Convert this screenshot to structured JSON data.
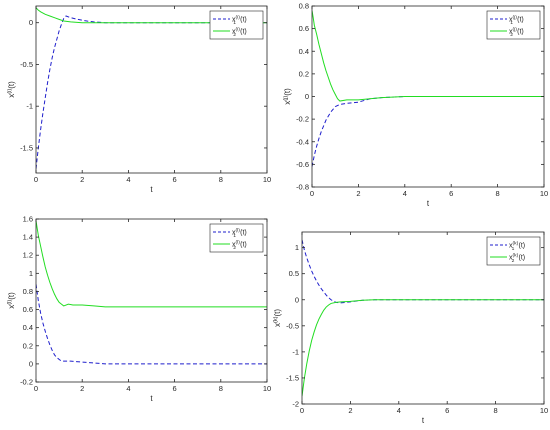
{
  "colors": {
    "x1": "#1f1fcc",
    "x2": "#22dd22",
    "axis": "#262626",
    "background": "#ffffff"
  },
  "chart_data": [
    {
      "type": "line",
      "xlabel": "t",
      "ylabel_base": "x",
      "ylabel_sup": "(i)",
      "ylabel_arg": "(t)",
      "xlim": [
        0,
        10
      ],
      "ylim": [
        -1.8,
        0.2
      ],
      "xticks": [
        "0",
        "2",
        "4",
        "6",
        "8",
        "10"
      ],
      "yticks": [
        "-1.5",
        "-1",
        "-0.5",
        "0"
      ],
      "ytick_values": [
        -1.5,
        -1,
        -0.5,
        0
      ],
      "legend_position": "top-right",
      "series": [
        {
          "name_base": "x",
          "name_sub": "1",
          "name_sup": "(i)",
          "name_arg": "(t)",
          "style": "dashed",
          "color": "#1f1fcc",
          "x": [
            0,
            0.1,
            0.2,
            0.3,
            0.4,
            0.5,
            0.6,
            0.7,
            0.8,
            0.9,
            1.0,
            1.1,
            1.2,
            1.3,
            1.5,
            1.8,
            2.0,
            2.2,
            2.5,
            3.0,
            4.0,
            6.0,
            8.0,
            10.0
          ],
          "y": [
            -1.75,
            -1.5,
            -1.28,
            -1.08,
            -0.9,
            -0.72,
            -0.56,
            -0.42,
            -0.3,
            -0.2,
            -0.1,
            -0.02,
            0.05,
            0.08,
            0.06,
            0.04,
            0.03,
            0.02,
            0.01,
            0,
            0,
            0,
            0,
            0
          ]
        },
        {
          "name_base": "x",
          "name_sub": "2",
          "name_sup": "(i)",
          "name_arg": "(t)",
          "style": "solid",
          "color": "#22dd22",
          "x": [
            0,
            0.1,
            0.2,
            0.4,
            0.6,
            0.8,
            1.0,
            1.2,
            1.5,
            2.0,
            3.0,
            4.0,
            6.0,
            8.0,
            10.0
          ],
          "y": [
            0.18,
            0.15,
            0.13,
            0.1,
            0.08,
            0.06,
            0.04,
            0.02,
            0.01,
            0,
            0,
            0,
            0,
            0,
            0
          ]
        }
      ]
    },
    {
      "type": "line",
      "xlabel": "t",
      "ylabel_base": "x",
      "ylabel_sup": "(j)",
      "ylabel_arg": "(t)",
      "xlim": [
        0,
        10
      ],
      "ylim": [
        -0.8,
        0.8
      ],
      "xticks": [
        "0",
        "2",
        "4",
        "6",
        "8",
        "10"
      ],
      "yticks": [
        "-0.8",
        "-0.6",
        "-0.4",
        "-0.2",
        "0",
        "0.2",
        "0.4",
        "0.6",
        "0.8"
      ],
      "ytick_values": [
        -0.8,
        -0.6,
        -0.4,
        -0.2,
        0,
        0.2,
        0.4,
        0.6,
        0.8
      ],
      "legend_position": "top-right",
      "series": [
        {
          "name_base": "x",
          "name_sub": "1",
          "name_sup": "(j)",
          "name_arg": "(t)",
          "style": "dashed",
          "color": "#1f1fcc",
          "x": [
            0,
            0.1,
            0.2,
            0.3,
            0.4,
            0.5,
            0.6,
            0.8,
            1.0,
            1.2,
            1.5,
            2.0,
            2.5,
            3.0,
            4.0,
            6.0,
            8.0,
            10.0
          ],
          "y": [
            -0.62,
            -0.52,
            -0.44,
            -0.37,
            -0.31,
            -0.26,
            -0.21,
            -0.14,
            -0.09,
            -0.07,
            -0.06,
            -0.05,
            -0.02,
            -0.01,
            0,
            0,
            0,
            0
          ]
        },
        {
          "name_base": "x",
          "name_sub": "2",
          "name_sup": "(j)",
          "name_arg": "(t)",
          "style": "solid",
          "color": "#22dd22",
          "x": [
            0,
            0.05,
            0.1,
            0.2,
            0.3,
            0.4,
            0.5,
            0.6,
            0.7,
            0.8,
            0.9,
            1.0,
            1.1,
            1.2,
            1.5,
            2.0,
            2.5,
            3.0,
            4.0,
            6.0,
            8.0,
            10.0
          ],
          "y": [
            0.76,
            0.7,
            0.63,
            0.55,
            0.46,
            0.38,
            0.3,
            0.23,
            0.17,
            0.11,
            0.06,
            0.02,
            -0.02,
            -0.04,
            -0.03,
            -0.03,
            -0.02,
            -0.01,
            0,
            0,
            0,
            0
          ]
        }
      ]
    },
    {
      "type": "line",
      "xlabel": "t",
      "ylabel_base": "x",
      "ylabel_sup": "(l)",
      "ylabel_arg": "(t)",
      "xlim": [
        0,
        10
      ],
      "ylim": [
        -0.2,
        1.6
      ],
      "xticks": [
        "0",
        "2",
        "4",
        "6",
        "8",
        "10"
      ],
      "yticks": [
        "-0.2",
        "0",
        "0.2",
        "0.4",
        "0.6",
        "0.8",
        "1",
        "1.2",
        "1.4",
        "1.6"
      ],
      "ytick_values": [
        -0.2,
        0,
        0.2,
        0.4,
        0.6,
        0.8,
        1,
        1.2,
        1.4,
        1.6
      ],
      "legend_position": "top-right",
      "series": [
        {
          "name_base": "x",
          "name_sub": "1",
          "name_sup": "(l)",
          "name_arg": "(t)",
          "style": "dashed",
          "color": "#1f1fcc",
          "x": [
            0,
            0.1,
            0.2,
            0.3,
            0.4,
            0.5,
            0.6,
            0.7,
            0.8,
            0.9,
            1.0,
            1.1,
            1.2,
            1.5,
            2.0,
            2.5,
            3.0,
            4.0,
            6.0,
            8.0,
            10.0
          ],
          "y": [
            0.88,
            0.7,
            0.56,
            0.45,
            0.36,
            0.28,
            0.21,
            0.15,
            0.1,
            0.07,
            0.05,
            0.03,
            0.03,
            0.03,
            0.02,
            0.01,
            0,
            0,
            0,
            0,
            0
          ]
        },
        {
          "name_base": "x",
          "name_sub": "2",
          "name_sup": "(l)",
          "name_arg": "(t)",
          "style": "solid",
          "color": "#22dd22",
          "x": [
            0,
            0.05,
            0.1,
            0.2,
            0.3,
            0.4,
            0.5,
            0.6,
            0.7,
            0.8,
            0.9,
            1.0,
            1.1,
            1.2,
            1.4,
            1.6,
            2.0,
            2.5,
            3.0,
            4.0,
            6.0,
            8.0,
            10.0
          ],
          "y": [
            1.58,
            1.5,
            1.42,
            1.3,
            1.18,
            1.07,
            0.98,
            0.9,
            0.83,
            0.77,
            0.72,
            0.68,
            0.66,
            0.64,
            0.66,
            0.65,
            0.65,
            0.64,
            0.63,
            0.63,
            0.63,
            0.63,
            0.63
          ]
        }
      ]
    },
    {
      "type": "line",
      "xlabel": "t",
      "ylabel_base": "x",
      "ylabel_sup": "(k)",
      "ylabel_arg": "(t)",
      "xlim": [
        0,
        10
      ],
      "ylim": [
        -2,
        1.3
      ],
      "xticks": [
        "0",
        "2",
        "4",
        "6",
        "8",
        "10"
      ],
      "yticks": [
        "-2",
        "-1.5",
        "-1",
        "-0.5",
        "0",
        "0.5",
        "1"
      ],
      "ytick_values": [
        -2,
        -1.5,
        -1,
        -0.5,
        0,
        0.5,
        1
      ],
      "legend_position": "top-right",
      "series": [
        {
          "name_base": "x",
          "name_sub": "1",
          "name_sup": "(k)",
          "name_arg": "(t)",
          "style": "dashed",
          "color": "#1f1fcc",
          "x": [
            0,
            0.1,
            0.2,
            0.3,
            0.4,
            0.5,
            0.6,
            0.7,
            0.8,
            0.9,
            1.0,
            1.1,
            1.2,
            1.4,
            1.6,
            2.0,
            2.5,
            3.0,
            4.0,
            6.0,
            8.0,
            10.0
          ],
          "y": [
            1.15,
            0.95,
            0.8,
            0.67,
            0.55,
            0.45,
            0.36,
            0.28,
            0.21,
            0.15,
            0.09,
            0.04,
            0,
            -0.05,
            -0.06,
            -0.04,
            -0.01,
            0,
            0,
            0,
            0,
            0
          ]
        },
        {
          "name_base": "x",
          "name_sub": "2",
          "name_sup": "(k)",
          "name_arg": "(t)",
          "style": "solid",
          "color": "#22dd22",
          "x": [
            0,
            0.1,
            0.2,
            0.3,
            0.4,
            0.5,
            0.6,
            0.7,
            0.8,
            0.9,
            1.0,
            1.1,
            1.2,
            1.4,
            1.6,
            2.0,
            2.5,
            3.0,
            4.0,
            6.0,
            8.0,
            10.0
          ],
          "y": [
            -1.85,
            -1.5,
            -1.22,
            -0.98,
            -0.78,
            -0.62,
            -0.48,
            -0.37,
            -0.28,
            -0.2,
            -0.14,
            -0.1,
            -0.07,
            -0.05,
            -0.04,
            -0.03,
            -0.01,
            0,
            0,
            0,
            0,
            0
          ]
        }
      ]
    }
  ]
}
